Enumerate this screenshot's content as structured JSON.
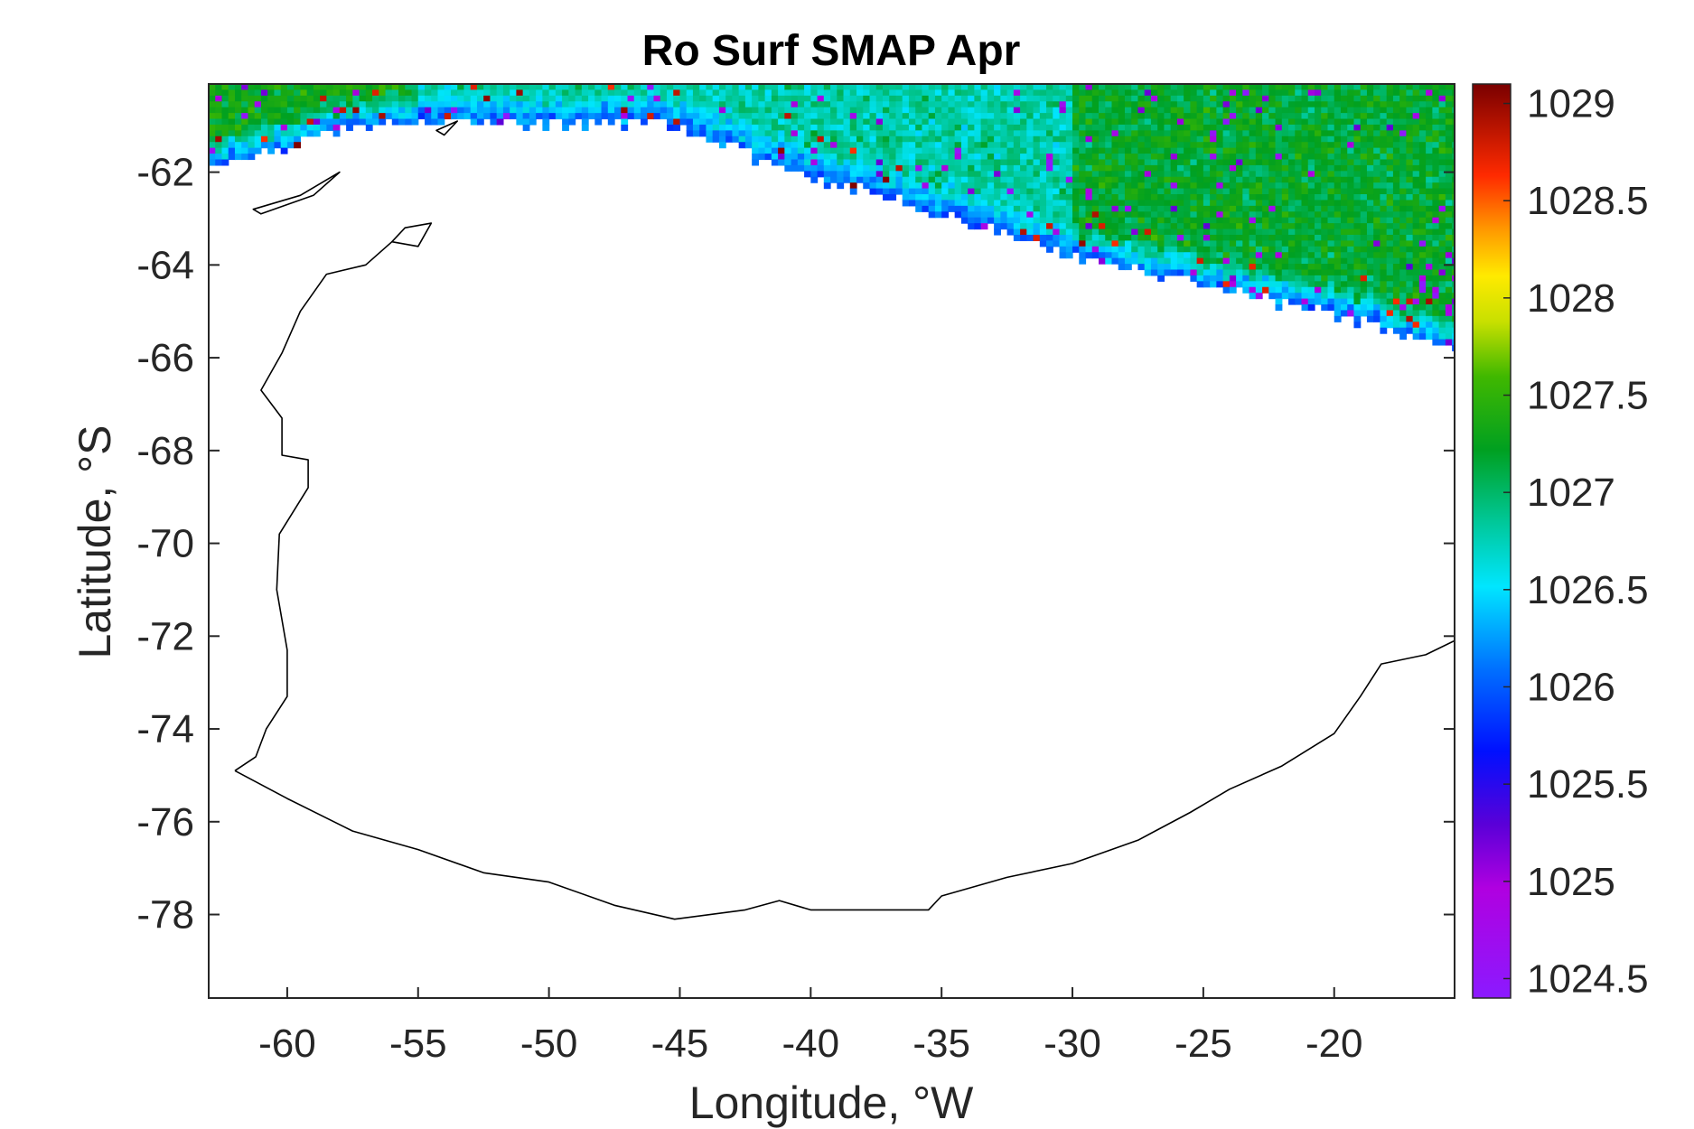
{
  "chart_data": {
    "type": "heatmap",
    "title": "Ro Surf SMAP Apr",
    "xlabel": "Longitude, °W",
    "ylabel": "Latitude, °S",
    "xlim": [
      -63,
      -15.4
    ],
    "ylim": [
      -79.8,
      -60.1
    ],
    "xticks": [
      -60,
      -55,
      -50,
      -45,
      -40,
      -35,
      -30,
      -25,
      -20
    ],
    "xtick_labels": [
      "-60",
      "-55",
      "-50",
      "-45",
      "-40",
      "-35",
      "-30",
      "-25",
      "-20"
    ],
    "yticks": [
      -62,
      -64,
      -66,
      -68,
      -70,
      -72,
      -74,
      -76,
      -78
    ],
    "ytick_labels": [
      "-62",
      "-64",
      "-66",
      "-68",
      "-70",
      "-72",
      "-74",
      "-76",
      "-78"
    ],
    "colorbar": {
      "range": [
        1024.4,
        1029.1
      ],
      "ticks": [
        1024.5,
        1025,
        1025.5,
        1026,
        1026.5,
        1027,
        1027.5,
        1028,
        1028.5,
        1029
      ],
      "tick_labels": [
        "1024.5",
        "1025",
        "1025.5",
        "1026",
        "1026.5",
        "1027",
        "1027.5",
        "1028",
        "1028.5",
        "1029"
      ],
      "colormap": "jet-like (purple-blue-cyan-green-yellow-red-darkred)"
    },
    "data_coverage": {
      "description": "Gridded surface density observed only in the northern part of the domain (north of the sea-ice edge)",
      "ice_edge": [
        {
          "lon": -63.0,
          "lat": -61.9
        },
        {
          "lon": -60.0,
          "lat": -61.4
        },
        {
          "lon": -57.5,
          "lat": -61.0
        },
        {
          "lon": -55.0,
          "lat": -60.8
        },
        {
          "lon": -50.0,
          "lat": -60.9
        },
        {
          "lon": -45.0,
          "lat": -60.9
        },
        {
          "lon": -43.5,
          "lat": -61.3
        },
        {
          "lon": -41.0,
          "lat": -61.9
        },
        {
          "lon": -37.0,
          "lat": -62.5
        },
        {
          "lon": -34.0,
          "lat": -63.0
        },
        {
          "lon": -31.0,
          "lat": -63.6
        },
        {
          "lon": -28.0,
          "lat": -64.0
        },
        {
          "lon": -24.0,
          "lat": -64.5
        },
        {
          "lon": -20.0,
          "lat": -65.0
        },
        {
          "lon": -15.4,
          "lat": -65.7
        }
      ],
      "typical_values": {
        "west_nearshore": 1027.3,
        "central_north": 1026.8,
        "east": 1027.2,
        "ice_edge_band": 1026.0
      }
    },
    "coastline": [
      {
        "lon": -62.0,
        "lat": -74.9
      },
      {
        "lon": -60.0,
        "lat": -75.5
      },
      {
        "lon": -57.5,
        "lat": -76.2
      },
      {
        "lon": -55.0,
        "lat": -76.6
      },
      {
        "lon": -52.5,
        "lat": -77.1
      },
      {
        "lon": -50.0,
        "lat": -77.3
      },
      {
        "lon": -47.5,
        "lat": -77.8
      },
      {
        "lon": -45.2,
        "lat": -78.1
      },
      {
        "lon": -42.5,
        "lat": -77.9
      },
      {
        "lon": -41.2,
        "lat": -77.7
      },
      {
        "lon": -40.0,
        "lat": -77.9
      },
      {
        "lon": -37.5,
        "lat": -77.9
      },
      {
        "lon": -35.5,
        "lat": -77.9
      },
      {
        "lon": -35.0,
        "lat": -77.6
      },
      {
        "lon": -32.5,
        "lat": -77.2
      },
      {
        "lon": -30.0,
        "lat": -76.9
      },
      {
        "lon": -27.5,
        "lat": -76.4
      },
      {
        "lon": -25.5,
        "lat": -75.8
      },
      {
        "lon": -24.0,
        "lat": -75.3
      },
      {
        "lon": -22.0,
        "lat": -74.8
      },
      {
        "lon": -20.0,
        "lat": -74.1
      },
      {
        "lon": -19.0,
        "lat": -73.3
      },
      {
        "lon": -18.2,
        "lat": -72.6
      },
      {
        "lon": -16.5,
        "lat": -72.4
      },
      {
        "lon": -15.4,
        "lat": -72.1
      }
    ],
    "peninsula_coast": [
      {
        "lon": -62.0,
        "lat": -74.9
      },
      {
        "lon": -61.2,
        "lat": -74.6
      },
      {
        "lon": -60.8,
        "lat": -74.0
      },
      {
        "lon": -60.0,
        "lat": -73.3
      },
      {
        "lon": -60.0,
        "lat": -72.3
      },
      {
        "lon": -60.4,
        "lat": -71.0
      },
      {
        "lon": -60.3,
        "lat": -69.8
      },
      {
        "lon": -59.2,
        "lat": -68.8
      },
      {
        "lon": -59.2,
        "lat": -68.2
      },
      {
        "lon": -60.2,
        "lat": -68.1
      },
      {
        "lon": -60.2,
        "lat": -67.3
      },
      {
        "lon": -61.0,
        "lat": -66.7
      },
      {
        "lon": -60.2,
        "lat": -65.9
      },
      {
        "lon": -59.5,
        "lat": -65.0
      },
      {
        "lon": -58.5,
        "lat": -64.2
      },
      {
        "lon": -57.0,
        "lat": -64.0
      },
      {
        "lon": -56.0,
        "lat": -63.5
      }
    ],
    "islands": [
      [
        {
          "lon": -61.3,
          "lat": -62.8
        },
        {
          "lon": -59.5,
          "lat": -62.5
        },
        {
          "lon": -58.0,
          "lat": -62.0
        },
        {
          "lon": -59.0,
          "lat": -62.5
        },
        {
          "lon": -61.0,
          "lat": -62.9
        }
      ],
      [
        {
          "lon": -55.5,
          "lat": -63.2
        },
        {
          "lon": -54.5,
          "lat": -63.1
        },
        {
          "lon": -55.0,
          "lat": -63.6
        },
        {
          "lon": -56.0,
          "lat": -63.5
        }
      ],
      [
        {
          "lon": -54.3,
          "lat": -61.1
        },
        {
          "lon": -53.5,
          "lat": -60.9
        },
        {
          "lon": -54.0,
          "lat": -61.2
        }
      ]
    ]
  }
}
